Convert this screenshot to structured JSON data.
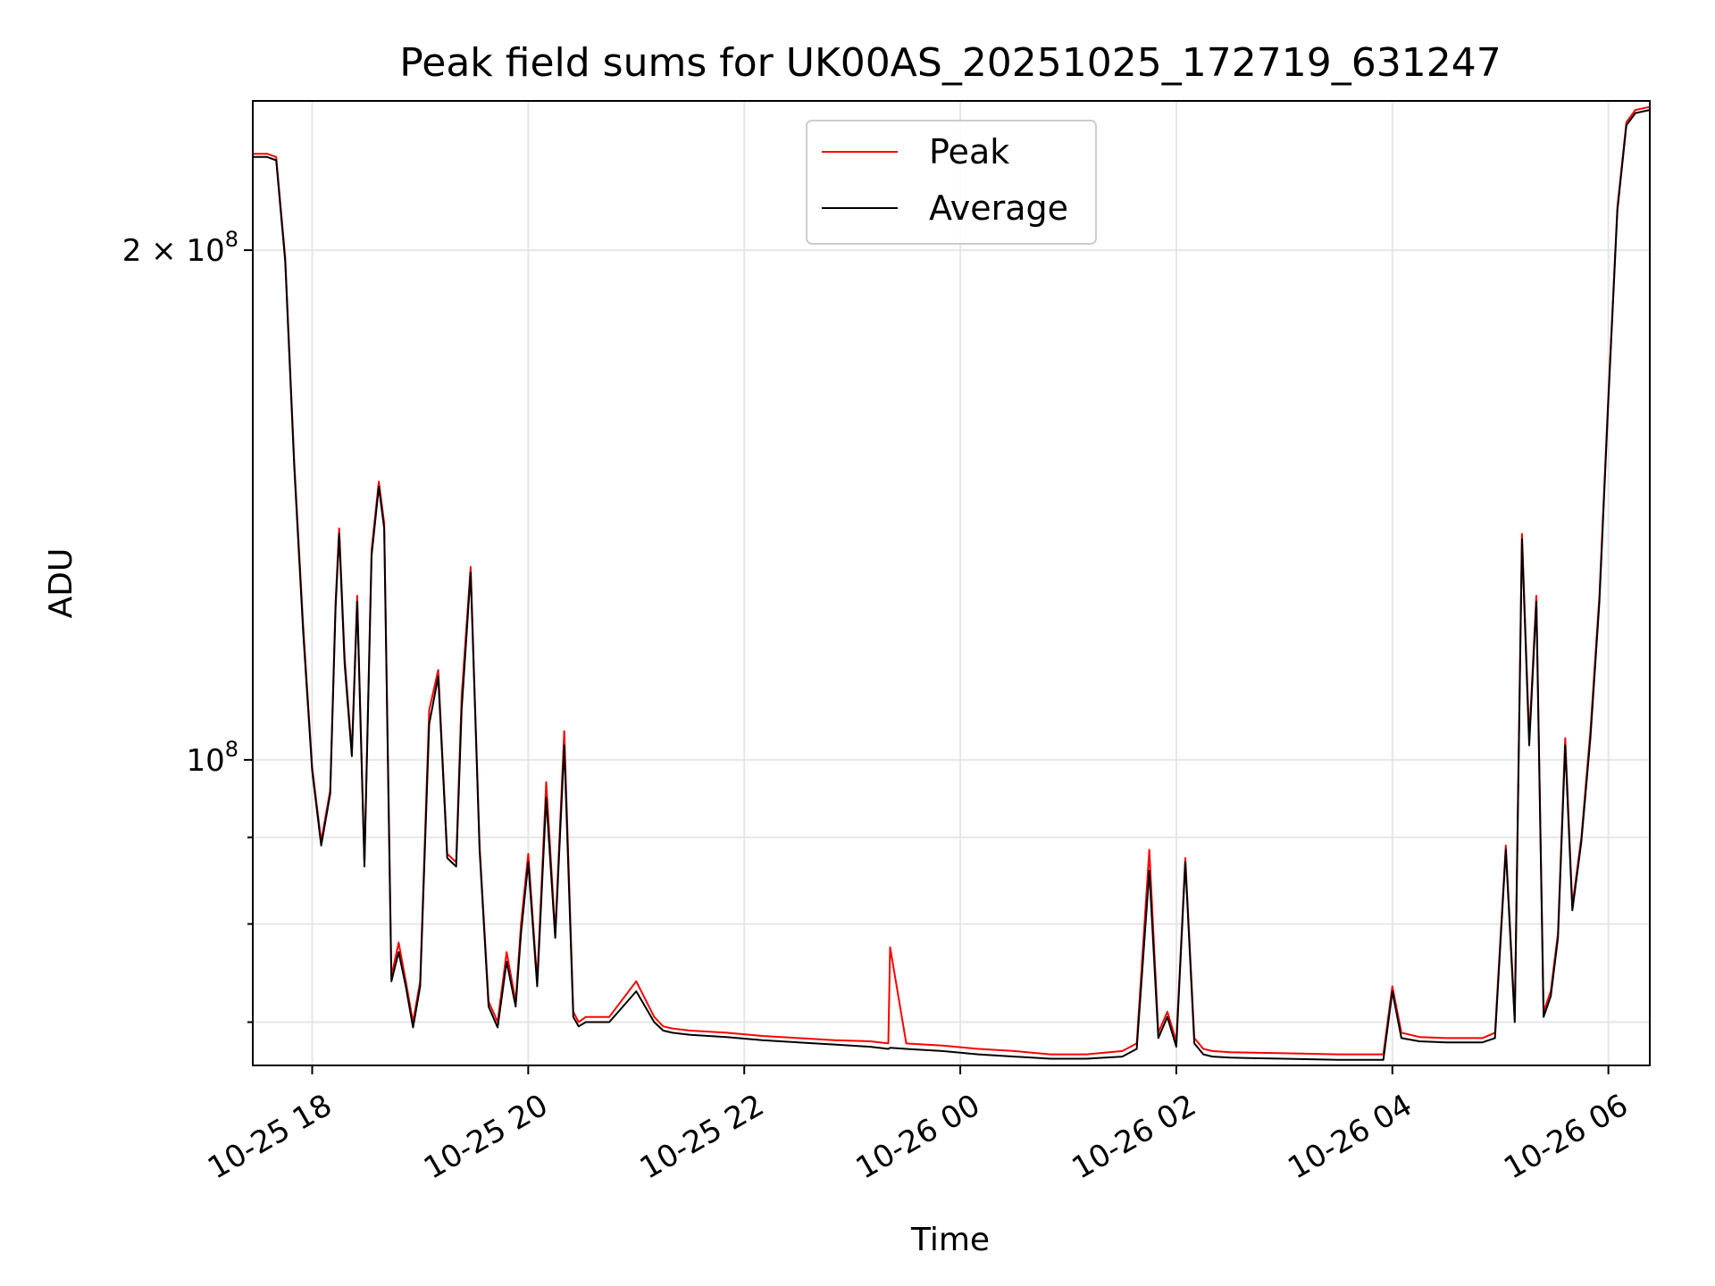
{
  "chart_data": {
    "type": "line",
    "title": "Peak field sums for UK00AS_20251025_172719_631247",
    "xlabel": "Time",
    "ylabel": "ADU",
    "yscale": "log",
    "xlim": [
      "2025-10-25 17:27",
      "2025-10-26 06:23"
    ],
    "ylim": [
      66000000,
      245000000
    ],
    "x_ticks": [
      "10-25 18",
      "10-25 20",
      "10-25 22",
      "10-26 00",
      "10-26 02",
      "10-26 04",
      "10-26 06"
    ],
    "y_major_ticks": [
      {
        "value": 100000000,
        "base": "10",
        "exp": "8"
      },
      {
        "value": 200000000,
        "base": "2 × 10",
        "exp": "8"
      }
    ],
    "y_minor_ticks": [
      70000000,
      80000000,
      90000000
    ],
    "grid": true,
    "legend_position": "upper-center",
    "series": [
      {
        "name": "Peak",
        "color": "#ff0000",
        "x": [
          "2025-10-25 17:27",
          "2025-10-25 17:35",
          "2025-10-25 17:40",
          "2025-10-25 17:45",
          "2025-10-25 17:50",
          "2025-10-25 17:55",
          "2025-10-25 18:00",
          "2025-10-25 18:05",
          "2025-10-25 18:10",
          "2025-10-25 18:13",
          "2025-10-25 18:15",
          "2025-10-25 18:18",
          "2025-10-25 18:22",
          "2025-10-25 18:25",
          "2025-10-25 18:29",
          "2025-10-25 18:33",
          "2025-10-25 18:37",
          "2025-10-25 18:40",
          "2025-10-25 18:44",
          "2025-10-25 18:48",
          "2025-10-25 18:52",
          "2025-10-25 18:56",
          "2025-10-25 19:00",
          "2025-10-25 19:05",
          "2025-10-25 19:10",
          "2025-10-25 19:15",
          "2025-10-25 19:20",
          "2025-10-25 19:23",
          "2025-10-25 19:28",
          "2025-10-25 19:33",
          "2025-10-25 19:38",
          "2025-10-25 19:43",
          "2025-10-25 19:48",
          "2025-10-25 19:53",
          "2025-10-25 19:56",
          "2025-10-25 20:00",
          "2025-10-25 20:05",
          "2025-10-25 20:10",
          "2025-10-25 20:15",
          "2025-10-25 20:20",
          "2025-10-25 20:25",
          "2025-10-25 20:28",
          "2025-10-25 20:32",
          "2025-10-25 20:35",
          "2025-10-25 20:38",
          "2025-10-25 20:45",
          "2025-10-25 21:00",
          "2025-10-25 21:10",
          "2025-10-25 21:15",
          "2025-10-25 21:20",
          "2025-10-25 21:30",
          "2025-10-25 21:50",
          "2025-10-25 22:10",
          "2025-10-25 22:30",
          "2025-10-25 22:50",
          "2025-10-25 23:10",
          "2025-10-25 23:20",
          "2025-10-25 23:21",
          "2025-10-25 23:30",
          "2025-10-25 23:50",
          "2025-10-26 00:10",
          "2025-10-26 00:30",
          "2025-10-26 00:50",
          "2025-10-26 01:10",
          "2025-10-26 01:30",
          "2025-10-26 01:38",
          "2025-10-26 01:45",
          "2025-10-26 01:50",
          "2025-10-26 01:55",
          "2025-10-26 02:00",
          "2025-10-26 02:05",
          "2025-10-26 02:10",
          "2025-10-26 02:15",
          "2025-10-26 02:20",
          "2025-10-26 02:30",
          "2025-10-26 03:00",
          "2025-10-26 03:30",
          "2025-10-26 03:55",
          "2025-10-26 04:00",
          "2025-10-26 04:05",
          "2025-10-26 04:15",
          "2025-10-26 04:30",
          "2025-10-26 04:50",
          "2025-10-26 04:57",
          "2025-10-26 05:03",
          "2025-10-26 05:08",
          "2025-10-26 05:12",
          "2025-10-26 05:16",
          "2025-10-26 05:20",
          "2025-10-26 05:24",
          "2025-10-26 05:28",
          "2025-10-26 05:32",
          "2025-10-26 05:36",
          "2025-10-26 05:40",
          "2025-10-26 05:45",
          "2025-10-26 05:50",
          "2025-10-26 05:55",
          "2025-10-26 06:00",
          "2025-10-26 06:05",
          "2025-10-26 06:10",
          "2025-10-26 06:15",
          "2025-10-26 06:23"
        ],
        "y": [
          228000000,
          228000000,
          227000000,
          198000000,
          150000000,
          120000000,
          99000000,
          89500000,
          96000000,
          124000000,
          137000000,
          115000000,
          101000000,
          125000000,
          87000000,
          133000000,
          146000000,
          138000000,
          74500000,
          78000000,
          74000000,
          70000000,
          74000000,
          107000000,
          113000000,
          88000000,
          87000000,
          109000000,
          130000000,
          89000000,
          72000000,
          70000000,
          77000000,
          72000000,
          80000000,
          88000000,
          74000000,
          97000000,
          79000000,
          104000000,
          71000000,
          70000000,
          70500000,
          70500000,
          70500000,
          70500000,
          74000000,
          70500000,
          69600000,
          69400000,
          69200000,
          69000000,
          68700000,
          68500000,
          68300000,
          68200000,
          68000000,
          77500000,
          68000000,
          67800000,
          67500000,
          67300000,
          67000000,
          67000000,
          67300000,
          68000000,
          88500000,
          69000000,
          71000000,
          68200000,
          87500000,
          68500000,
          67500000,
          67300000,
          67200000,
          67100000,
          67000000,
          67000000,
          73500000,
          69000000,
          68600000,
          68500000,
          68500000,
          69000000,
          89000000,
          70500000,
          136000000,
          103000000,
          125000000,
          71000000,
          73000000,
          79000000,
          103000000,
          82000000,
          90000000,
          104000000,
          125000000,
          164000000,
          212000000,
          238000000,
          242000000,
          243000000
        ]
      },
      {
        "name": "Average",
        "color": "#000000",
        "x": [
          "2025-10-25 17:27",
          "2025-10-25 17:35",
          "2025-10-25 17:40",
          "2025-10-25 17:45",
          "2025-10-25 17:50",
          "2025-10-25 17:55",
          "2025-10-25 18:00",
          "2025-10-25 18:05",
          "2025-10-25 18:10",
          "2025-10-25 18:13",
          "2025-10-25 18:15",
          "2025-10-25 18:18",
          "2025-10-25 18:22",
          "2025-10-25 18:25",
          "2025-10-25 18:29",
          "2025-10-25 18:33",
          "2025-10-25 18:37",
          "2025-10-25 18:40",
          "2025-10-25 18:44",
          "2025-10-25 18:48",
          "2025-10-25 18:52",
          "2025-10-25 18:56",
          "2025-10-25 19:00",
          "2025-10-25 19:05",
          "2025-10-25 19:10",
          "2025-10-25 19:15",
          "2025-10-25 19:20",
          "2025-10-25 19:23",
          "2025-10-25 19:28",
          "2025-10-25 19:33",
          "2025-10-25 19:38",
          "2025-10-25 19:43",
          "2025-10-25 19:48",
          "2025-10-25 19:53",
          "2025-10-25 19:56",
          "2025-10-25 20:00",
          "2025-10-25 20:05",
          "2025-10-25 20:10",
          "2025-10-25 20:15",
          "2025-10-25 20:20",
          "2025-10-25 20:25",
          "2025-10-25 20:28",
          "2025-10-25 20:32",
          "2025-10-25 20:35",
          "2025-10-25 20:38",
          "2025-10-25 20:45",
          "2025-10-25 21:00",
          "2025-10-25 21:10",
          "2025-10-25 21:15",
          "2025-10-25 21:20",
          "2025-10-25 21:30",
          "2025-10-25 21:50",
          "2025-10-25 22:10",
          "2025-10-25 22:30",
          "2025-10-25 22:50",
          "2025-10-25 23:10",
          "2025-10-25 23:20",
          "2025-10-25 23:21",
          "2025-10-25 23:30",
          "2025-10-25 23:50",
          "2025-10-26 00:10",
          "2025-10-26 00:30",
          "2025-10-26 00:50",
          "2025-10-26 01:10",
          "2025-10-26 01:30",
          "2025-10-26 01:38",
          "2025-10-26 01:45",
          "2025-10-26 01:50",
          "2025-10-26 01:55",
          "2025-10-26 02:00",
          "2025-10-26 02:05",
          "2025-10-26 02:10",
          "2025-10-26 02:15",
          "2025-10-26 02:20",
          "2025-10-26 02:30",
          "2025-10-26 03:00",
          "2025-10-26 03:30",
          "2025-10-26 03:55",
          "2025-10-26 04:00",
          "2025-10-26 04:05",
          "2025-10-26 04:15",
          "2025-10-26 04:30",
          "2025-10-26 04:50",
          "2025-10-26 04:57",
          "2025-10-26 05:03",
          "2025-10-26 05:08",
          "2025-10-26 05:12",
          "2025-10-26 05:16",
          "2025-10-26 05:20",
          "2025-10-26 05:24",
          "2025-10-26 05:28",
          "2025-10-26 05:32",
          "2025-10-26 05:36",
          "2025-10-26 05:40",
          "2025-10-26 05:45",
          "2025-10-26 05:50",
          "2025-10-26 05:55",
          "2025-10-26 06:00",
          "2025-10-26 06:05",
          "2025-10-26 06:10",
          "2025-10-26 06:15",
          "2025-10-26 06:23"
        ],
        "y": [
          227000000,
          227000000,
          226000000,
          197000000,
          149000000,
          119000000,
          98500000,
          89000000,
          95500000,
          123000000,
          136000000,
          114000000,
          100500000,
          124000000,
          86500000,
          132000000,
          145000000,
          137000000,
          74000000,
          77000000,
          73500000,
          69500000,
          73500000,
          105000000,
          112000000,
          87500000,
          86500000,
          107000000,
          129000000,
          88500000,
          71500000,
          69500000,
          76000000,
          71500000,
          79000000,
          87000000,
          73500000,
          95000000,
          78500000,
          102000000,
          70500000,
          69600000,
          70000000,
          70000000,
          70000000,
          70000000,
          73000000,
          70000000,
          69200000,
          69000000,
          68800000,
          68600000,
          68300000,
          68100000,
          67900000,
          67700000,
          67500000,
          67600000,
          67500000,
          67300000,
          67000000,
          66800000,
          66600000,
          66600000,
          66800000,
          67500000,
          86000000,
          68500000,
          70500000,
          67700000,
          87000000,
          68000000,
          67000000,
          66800000,
          66700000,
          66600000,
          66500000,
          66500000,
          73000000,
          68500000,
          68200000,
          68100000,
          68100000,
          68500000,
          88500000,
          70000000,
          135000000,
          102000000,
          124000000,
          70500000,
          72500000,
          78500000,
          102000000,
          81500000,
          89500000,
          103000000,
          124000000,
          163000000,
          211000000,
          237000000,
          241000000,
          242000000
        ]
      }
    ]
  }
}
